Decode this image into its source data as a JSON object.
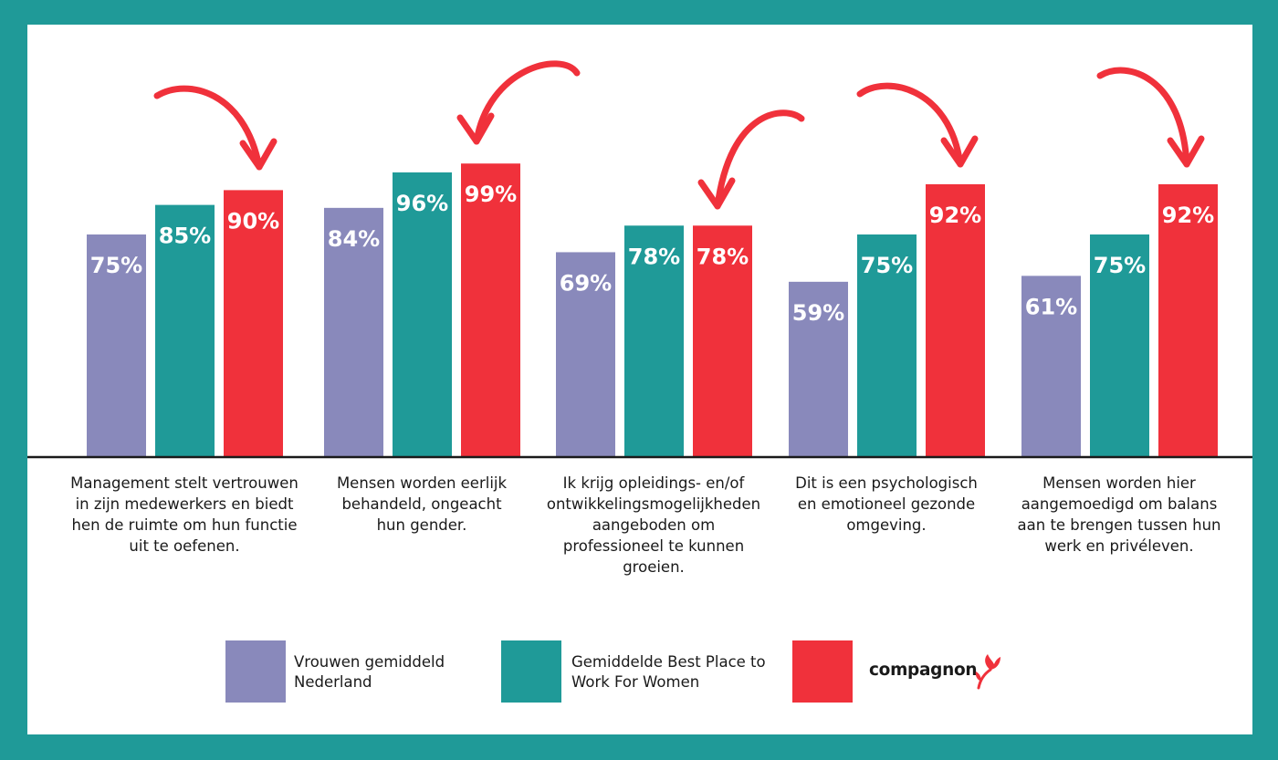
{
  "chart_data": {
    "type": "bar",
    "categories": [
      "Management stelt vertrouwen in zijn medewerkers en biedt hen de ruimte om hun functie uit te oefenen.",
      "Mensen worden eerlijk behandeld, ongeacht hun gender.",
      "Ik krijg opleidings- en/of ontwikkelingsmogelijkheden aangeboden om professioneel te kunnen groeien.",
      "Dit is een psychologisch en emotioneel gezonde omgeving.",
      "Mensen worden hier aangemoedigd om balans aan te brengen tussen hun werk en privéleven."
    ],
    "category_lines": [
      [
        "Management stelt vertrouwen",
        "in zijn medewerkers en biedt",
        "hen de ruimte om hun functie",
        "uit te oefenen."
      ],
      [
        "Mensen worden eerlijk",
        "behandeld, ongeacht",
        "hun gender."
      ],
      [
        "Ik krijg opleidings- en/of",
        "ontwikkelingsmogelijkheden",
        "aangeboden om",
        "professioneel te kunnen",
        "groeien."
      ],
      [
        "Dit is een psychologisch",
        "en emotioneel gezonde",
        "omgeving."
      ],
      [
        "Mensen worden hier",
        "aangemoedigd om balans",
        "aan te brengen tussen hun",
        "werk en privéleven."
      ]
    ],
    "series": [
      {
        "name": "Vrouwen gemiddeld Nederland",
        "values": [
          75,
          84,
          69,
          59,
          61
        ],
        "color": "#8989bb",
        "labels": [
          "75%",
          "84%",
          "69%",
          "59%",
          "61%"
        ]
      },
      {
        "name": "Gemiddelde Best Place to Work For Women",
        "values": [
          85,
          96,
          78,
          75,
          75
        ],
        "color": "#1f9a98",
        "labels": [
          "85%",
          "96%",
          "78%",
          "75%",
          "75%"
        ]
      },
      {
        "name": "compagnon",
        "values": [
          90,
          99,
          78,
          92,
          92
        ],
        "color": "#f0313b",
        "labels": [
          "90%",
          "99%",
          "78%",
          "92%",
          "92%"
        ]
      }
    ],
    "ylim": [
      0,
      100
    ],
    "grid": false,
    "legend_position": "bottom",
    "annotations": "curved red arrows pointing to each compagnon bar"
  },
  "legend": {
    "items": [
      {
        "lines": [
          "Vrouwen gemiddeld",
          "Nederland"
        ],
        "color": "#8989bb"
      },
      {
        "lines": [
          "Gemiddelde Best Place to",
          "Work For Women"
        ],
        "color": "#1f9a98"
      },
      {
        "brand": "compagnon",
        "color": "#f0313b",
        "icon": "tulip-logo-icon"
      }
    ]
  },
  "colors": {
    "frame": "#1f9a98",
    "background": "#ffffff",
    "arrow": "#f0313b",
    "baseline": "#1a1a1a"
  }
}
